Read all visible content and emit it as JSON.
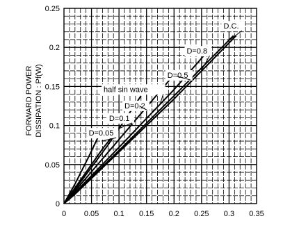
{
  "chart_data": {
    "type": "line",
    "ylabel_lines": [
      "FORWARD POWER",
      "DISSIPATION : Pf(W)"
    ],
    "xlabel": "",
    "xlim": [
      0,
      0.35
    ],
    "ylim": [
      0,
      0.25
    ],
    "x_ticks": [
      "0",
      "0.05",
      "0.1",
      "0.15",
      "0.2",
      "0.25",
      "0.3",
      "0.35"
    ],
    "y_ticks": [
      "0",
      "0.05",
      "0.1",
      "0.15",
      "0.2",
      "0.25"
    ],
    "grid": "fine",
    "series": [
      {
        "name": "D.C.",
        "points": [
          [
            0,
            0
          ],
          [
            0.02,
            0.012
          ],
          [
            0.1,
            0.066
          ],
          [
            0.2,
            0.134
          ],
          [
            0.313,
            0.215
          ]
        ]
      },
      {
        "name": "D=0.8",
        "points": [
          [
            0,
            0
          ],
          [
            0.02,
            0.013
          ],
          [
            0.1,
            0.068
          ],
          [
            0.2,
            0.138
          ],
          [
            0.308,
            0.215
          ]
        ]
      },
      {
        "name": "half sin wave",
        "points": [
          [
            0,
            0
          ],
          [
            0.02,
            0.014
          ],
          [
            0.1,
            0.072
          ],
          [
            0.2,
            0.146
          ],
          [
            0.255,
            0.19
          ]
        ]
      },
      {
        "name": "D=0.5",
        "points": [
          [
            0,
            0
          ],
          [
            0.02,
            0.016
          ],
          [
            0.1,
            0.082
          ],
          [
            0.2,
            0.165
          ]
        ]
      },
      {
        "name": "D=0.2",
        "points": [
          [
            0,
            0
          ],
          [
            0.02,
            0.018
          ],
          [
            0.08,
            0.075
          ],
          [
            0.14,
            0.138
          ]
        ]
      },
      {
        "name": "D=0.1",
        "points": [
          [
            0,
            0
          ],
          [
            0.02,
            0.02
          ],
          [
            0.07,
            0.07
          ],
          [
            0.1,
            0.097
          ]
        ]
      },
      {
        "name": "D=0.05",
        "points": [
          [
            0,
            0
          ],
          [
            0.02,
            0.025
          ],
          [
            0.045,
            0.06
          ],
          [
            0.07,
            0.097
          ]
        ]
      }
    ],
    "annotations": [
      {
        "text": "D.C.",
        "x": 0.29,
        "y": 0.224,
        "target": [
          0.3,
          0.209
        ]
      },
      {
        "text": "D=0.8",
        "x": 0.223,
        "y": 0.192,
        "target": [
          0.25,
          0.171
        ]
      },
      {
        "text": "D=0.5",
        "x": 0.188,
        "y": 0.161,
        "target": [
          0.205,
          0.163
        ]
      },
      {
        "text": "half sin wave",
        "x": 0.072,
        "y": 0.143,
        "target": [
          0.175,
          0.128
        ]
      },
      {
        "text": "D=0.2",
        "x": 0.11,
        "y": 0.122,
        "target": [
          0.137,
          0.125
        ]
      },
      {
        "text": "D=0.1",
        "x": 0.082,
        "y": 0.106,
        "target": [
          0.1,
          0.096
        ]
      },
      {
        "text": "D=0.05",
        "x": 0.045,
        "y": 0.087,
        "target": [
          0.068,
          0.08
        ]
      }
    ]
  }
}
